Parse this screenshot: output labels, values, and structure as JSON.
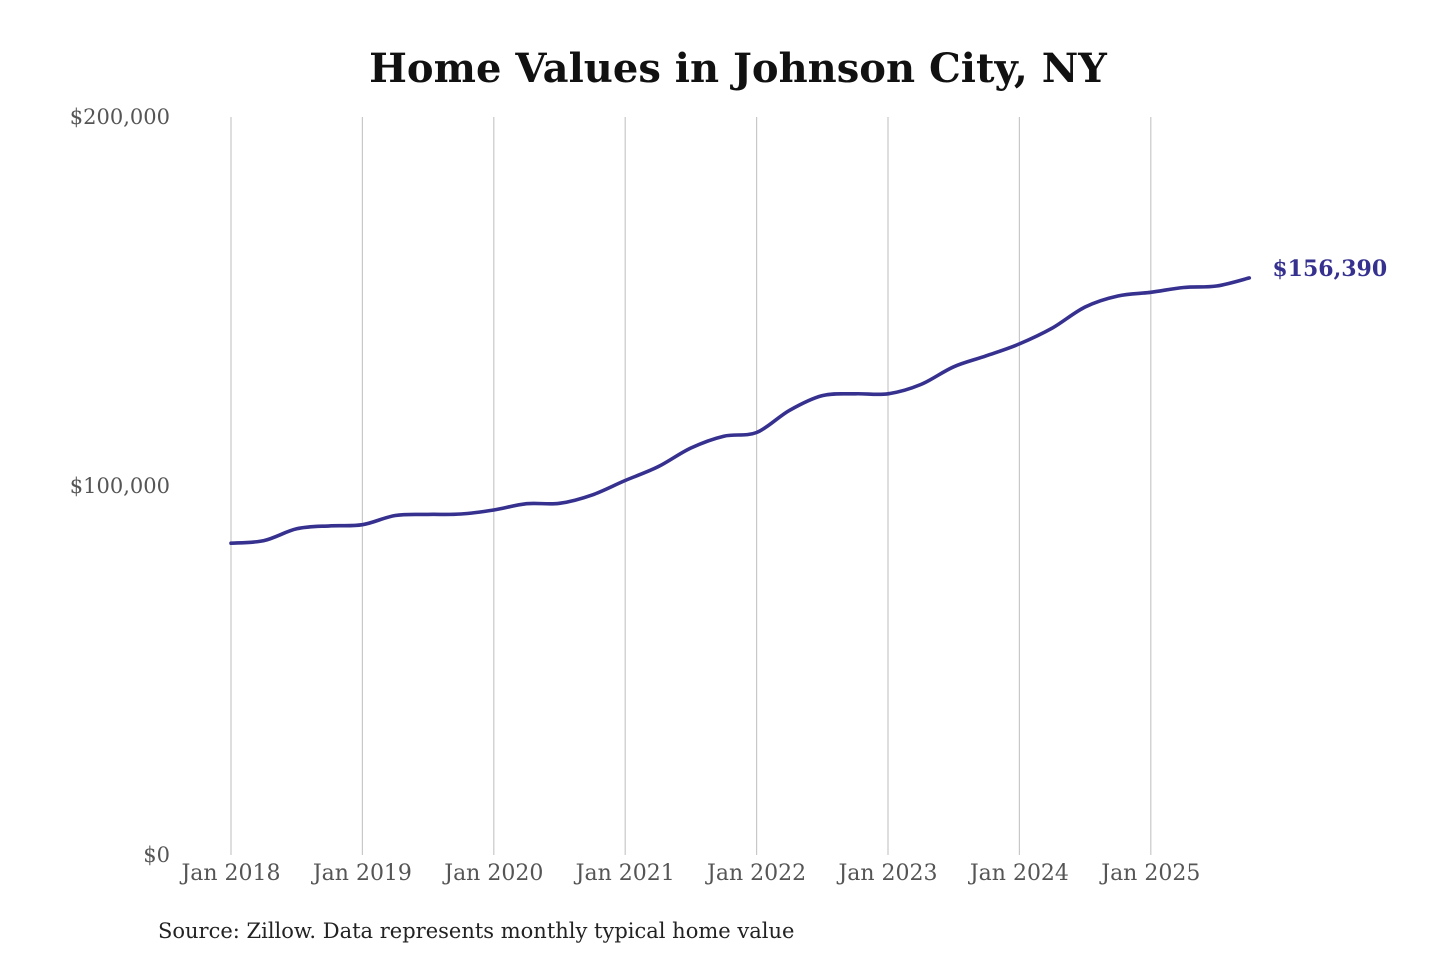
{
  "chart_data": {
    "type": "line",
    "title": "Home Values in Johnson City, NY",
    "source": "Source: Zillow. Data represents monthly typical home value",
    "ylim": [
      0,
      200000
    ],
    "y_ticks": [
      {
        "value": 0,
        "label": "$0"
      },
      {
        "value": 100000,
        "label": "$100,000"
      },
      {
        "value": 200000,
        "label": "$200,000"
      }
    ],
    "x_ticks": [
      {
        "value": "2018-01",
        "label": "Jan 2018"
      },
      {
        "value": "2019-01",
        "label": "Jan 2019"
      },
      {
        "value": "2020-01",
        "label": "Jan 2020"
      },
      {
        "value": "2021-01",
        "label": "Jan 2021"
      },
      {
        "value": "2022-01",
        "label": "Jan 2022"
      },
      {
        "value": "2023-01",
        "label": "Jan 2023"
      },
      {
        "value": "2024-01",
        "label": "Jan 2024"
      },
      {
        "value": "2025-01",
        "label": "Jan 2025"
      }
    ],
    "grid": "vertical",
    "line_color": "#36318f",
    "end_label": "$156,390",
    "series": [
      {
        "name": "",
        "points": [
          {
            "x": "2018-01",
            "y": 84500
          },
          {
            "x": "2018-04",
            "y": 85200
          },
          {
            "x": "2018-07",
            "y": 88400
          },
          {
            "x": "2018-10",
            "y": 89200
          },
          {
            "x": "2019-01",
            "y": 89500
          },
          {
            "x": "2019-04",
            "y": 92000
          },
          {
            "x": "2019-07",
            "y": 92300
          },
          {
            "x": "2019-10",
            "y": 92400
          },
          {
            "x": "2020-01",
            "y": 93500
          },
          {
            "x": "2020-04",
            "y": 95200
          },
          {
            "x": "2020-07",
            "y": 95300
          },
          {
            "x": "2020-10",
            "y": 97600
          },
          {
            "x": "2021-01",
            "y": 101500
          },
          {
            "x": "2021-04",
            "y": 105200
          },
          {
            "x": "2021-07",
            "y": 110300
          },
          {
            "x": "2021-10",
            "y": 113500
          },
          {
            "x": "2022-01",
            "y": 114500
          },
          {
            "x": "2022-04",
            "y": 120500
          },
          {
            "x": "2022-07",
            "y": 124500
          },
          {
            "x": "2022-10",
            "y": 125000
          },
          {
            "x": "2023-01",
            "y": 125000
          },
          {
            "x": "2023-04",
            "y": 127500
          },
          {
            "x": "2023-07",
            "y": 132300
          },
          {
            "x": "2023-10",
            "y": 135300
          },
          {
            "x": "2024-01",
            "y": 138500
          },
          {
            "x": "2024-04",
            "y": 142800
          },
          {
            "x": "2024-07",
            "y": 148500
          },
          {
            "x": "2024-10",
            "y": 151500
          },
          {
            "x": "2025-01",
            "y": 152500
          },
          {
            "x": "2025-04",
            "y": 153800
          },
          {
            "x": "2025-07",
            "y": 154200
          },
          {
            "x": "2025-10",
            "y": 156390
          }
        ]
      }
    ]
  }
}
